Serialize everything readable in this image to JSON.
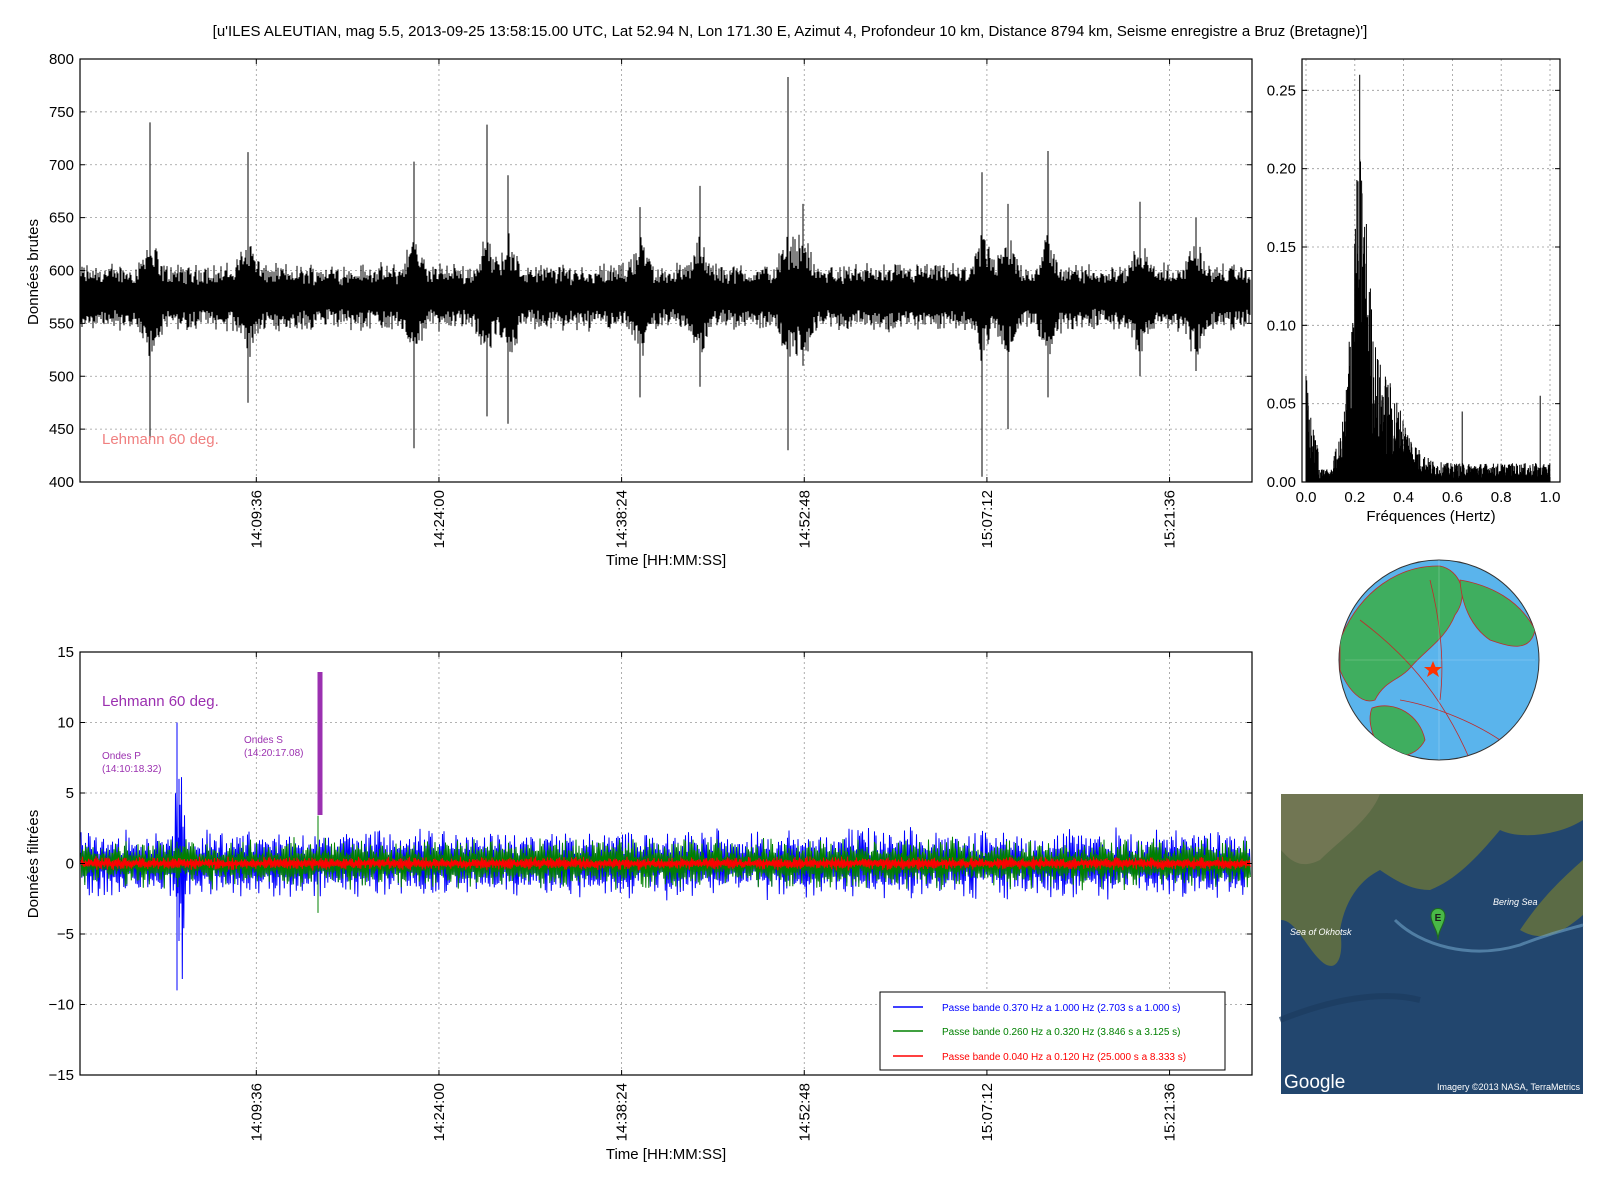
{
  "figure_title": "[u'ILES ALEUTIAN, mag 5.5, 2013-09-25 13:58:15.00 UTC, Lat 52.94 N, Lon 171.30 E, Azimut 4, Profondeur 10 km, Distance 8794 km, Seisme enregistre a Bruz (Bretagne)']",
  "colors": {
    "raw": "#000000",
    "blue": "#0000ff",
    "green": "#008000",
    "red": "#ff0000",
    "lehmann_top": "#f08080",
    "annotation": "#9b30b0",
    "ocean": "#5ab4ec",
    "land": "#3fae5f"
  },
  "icons": {
    "globe": "globe-map-icon",
    "map": "satellite-map-icon",
    "marker": "epicenter-marker-icon"
  },
  "map": {
    "sea_okhotsk": "Sea of Okhotsk",
    "bering_sea": "Bering Sea",
    "marker_letter": "E",
    "google": "Google",
    "credit": "Imagery ©2013 NASA, TerraMetrics"
  },
  "chart_data": [
    {
      "id": "raw",
      "type": "line",
      "ylabel": "Données brutes",
      "xlabel": "Time [HH:MM:SS]",
      "ylim": [
        400,
        800
      ],
      "xlim_seconds_since_1400": [
        -258,
        5286
      ],
      "yticks": [
        400,
        450,
        500,
        550,
        600,
        650,
        700,
        750,
        800
      ],
      "xticks": [
        "14:09:36",
        "14:24:00",
        "14:38:24",
        "14:52:48",
        "15:07:12",
        "15:21:36"
      ],
      "grid": true,
      "baseline": 575,
      "annotation": "Lehmann 60 deg."
    },
    {
      "id": "spectrum",
      "type": "line",
      "xlabel": "Fréquences (Hertz)",
      "xlim": [
        0.0,
        1.0
      ],
      "ylim": [
        0.0,
        0.27
      ],
      "xticks": [
        "0.0",
        "0.2",
        "0.4",
        "0.6",
        "0.8",
        "1.0"
      ],
      "yticks": [
        "0.00",
        "0.05",
        "0.10",
        "0.15",
        "0.20",
        "0.25"
      ],
      "grid": true,
      "peak_frequency_hz": 0.22,
      "peak_value": 0.26
    },
    {
      "id": "filtered",
      "type": "line",
      "ylabel": "Données filtrées",
      "xlabel": "Time [HH:MM:SS]",
      "ylim": [
        -15,
        15
      ],
      "yticks": [
        "−15",
        "−10",
        "−5",
        "0",
        "5",
        "10",
        "15"
      ],
      "xticks": [
        "14:09:36",
        "14:24:00",
        "14:38:24",
        "14:52:48",
        "15:07:12",
        "15:21:36"
      ],
      "grid": true,
      "legend_position": "lower-right",
      "series": [
        {
          "name": "Passe bande 0.370 Hz a 1.000 Hz (2.703 s a 1.000 s)",
          "color": "#0000ff",
          "amplitude": 2.2
        },
        {
          "name": "Passe bande 0.260 Hz a 0.320 Hz (3.846 s a 3.125 s)",
          "color": "#008000",
          "amplitude": 1.6
        },
        {
          "name": "Passe bande 0.040 Hz a 0.120 Hz (25.000 s a 8.333 s)",
          "color": "#ff0000",
          "amplitude": 0.45
        }
      ],
      "annotations": {
        "lehmann": "Lehmann 60 deg.",
        "p_label": "Ondes P",
        "p_time": "(14:10:18.32)",
        "s_label": "Ondes S",
        "s_time": "(14:20:17.08)"
      }
    }
  ]
}
